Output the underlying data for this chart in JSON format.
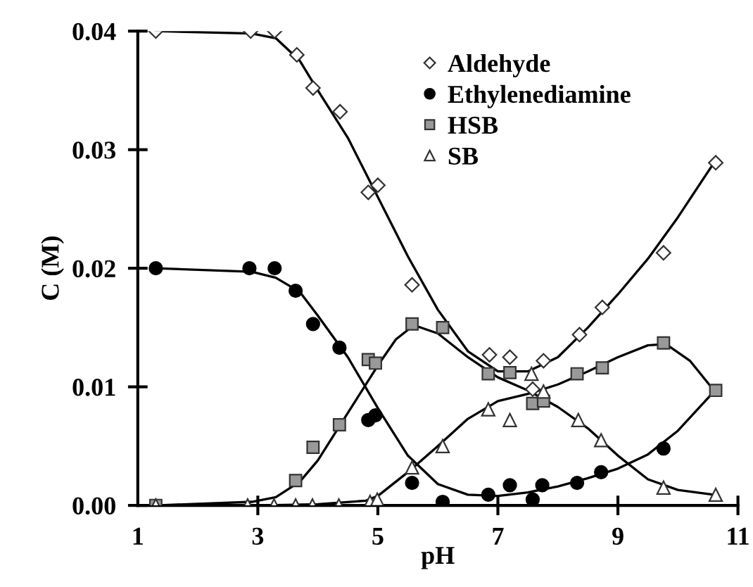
{
  "chart_data": {
    "type": "scatter",
    "xlabel": "pH",
    "ylabel": "C (M)",
    "xlim": [
      1,
      11
    ],
    "ylim": [
      0,
      0.04
    ],
    "xticks": [
      1,
      3,
      5,
      7,
      9,
      11
    ],
    "yticks": [
      {
        "value": 0,
        "label": "0.00"
      },
      {
        "value": 0.01,
        "label": "0.01"
      },
      {
        "value": 0.02,
        "label": "0.02"
      },
      {
        "value": 0.03,
        "label": "0.03"
      },
      {
        "value": 0.04,
        "label": "0.04"
      }
    ],
    "grid": false,
    "legend": "top right",
    "series": [
      {
        "name": "Aldehyde",
        "marker": "diamond",
        "color": "#ffffff",
        "x": [
          1.3,
          2.88,
          3.28,
          3.65,
          3.92,
          4.37,
          4.84,
          5.0,
          5.57,
          6.86,
          7.2,
          7.58,
          7.76,
          8.36,
          8.74,
          9.76,
          10.63
        ],
        "values": [
          0.04,
          0.04,
          0.04,
          0.038,
          0.0352,
          0.0332,
          0.0264,
          0.027,
          0.0186,
          0.0127,
          0.0125,
          0.0098,
          0.0122,
          0.0144,
          0.0167,
          0.0213,
          0.0289
        ]
      },
      {
        "name": "Ethylenediamine",
        "marker": "circle",
        "color": "#000000",
        "x": [
          1.3,
          2.86,
          3.28,
          3.63,
          3.92,
          4.36,
          4.84,
          4.96,
          5.57,
          6.08,
          6.84,
          7.2,
          7.58,
          7.74,
          8.32,
          8.72,
          9.76
        ],
        "values": [
          0.02,
          0.02,
          0.02,
          0.0181,
          0.0153,
          0.0133,
          0.0072,
          0.0076,
          0.0019,
          0.0003,
          0.0009,
          0.0017,
          0.0005,
          0.0017,
          0.0019,
          0.0028,
          0.0048
        ]
      },
      {
        "name": "HSB",
        "marker": "square",
        "color": "#999999",
        "x": [
          1.3,
          3.63,
          3.92,
          4.36,
          4.84,
          4.96,
          5.57,
          6.08,
          6.84,
          7.2,
          7.58,
          7.76,
          8.32,
          8.74,
          9.76,
          10.63
        ],
        "values": [
          0.0,
          0.0021,
          0.0049,
          0.0068,
          0.0123,
          0.012,
          0.0153,
          0.015,
          0.0111,
          0.0112,
          0.0086,
          0.0088,
          0.0111,
          0.0116,
          0.0137,
          0.0097
        ]
      },
      {
        "name": "SB",
        "marker": "triangle",
        "color": "#ffffff",
        "x": [
          1.3,
          2.83,
          3.27,
          3.63,
          3.91,
          4.35,
          4.87,
          4.99,
          5.57,
          6.08,
          6.84,
          7.2,
          7.56,
          7.76,
          8.34,
          8.72,
          9.76,
          10.63
        ],
        "values": [
          0.0,
          0.0,
          0.0,
          0.0,
          0.0,
          0.0,
          0.0003,
          0.0005,
          0.0032,
          0.005,
          0.0081,
          0.0072,
          0.0111,
          0.0096,
          0.0072,
          0.0055,
          0.0015,
          0.0009
        ]
      },
      {
        "type": "line",
        "marker": "none",
        "line_style": "solid",
        "color": "#000000",
        "x": [
          1.3,
          2.9,
          3.3,
          3.7,
          4.0,
          4.5,
          5.0,
          5.5,
          6.0,
          6.5,
          7.0,
          7.5,
          8.0,
          8.5,
          9.0,
          9.5,
          10.0,
          10.6
        ],
        "values": [
          0.04,
          0.0398,
          0.0394,
          0.0375,
          0.035,
          0.031,
          0.026,
          0.021,
          0.0165,
          0.013,
          0.0113,
          0.0113,
          0.0125,
          0.015,
          0.0178,
          0.0208,
          0.0243,
          0.0289
        ]
      },
      {
        "type": "line",
        "marker": "none",
        "line_style": "solid",
        "color": "#000000",
        "x": [
          1.3,
          2.9,
          3.3,
          3.7,
          4.0,
          4.5,
          5.0,
          5.5,
          6.0,
          6.5,
          7.0,
          7.5,
          8.0,
          8.5,
          9.0,
          9.5,
          10.0,
          10.6
        ],
        "values": [
          0.02,
          0.0197,
          0.0192,
          0.018,
          0.016,
          0.0125,
          0.0082,
          0.0042,
          0.0018,
          0.0009,
          0.0008,
          0.0011,
          0.0016,
          0.0023,
          0.0031,
          0.0043,
          0.0063,
          0.0096
        ]
      },
      {
        "type": "line",
        "marker": "none",
        "line_style": "solid",
        "color": "#000000",
        "x": [
          1.3,
          2.9,
          3.3,
          3.7,
          4.0,
          4.5,
          5.0,
          5.3,
          5.6,
          6.0,
          6.5,
          7.0,
          7.5,
          8.0,
          8.5,
          9.0,
          9.5,
          10.0,
          10.6
        ],
        "values": [
          0.0,
          0.0003,
          0.0007,
          0.002,
          0.0038,
          0.0078,
          0.0118,
          0.014,
          0.0152,
          0.0145,
          0.0125,
          0.0108,
          0.0097,
          0.0083,
          0.0065,
          0.0042,
          0.0022,
          0.0013,
          0.0009
        ]
      },
      {
        "type": "line",
        "marker": "none",
        "line_style": "solid",
        "color": "#000000",
        "x": [
          1.3,
          3.0,
          4.0,
          4.8,
          5.0,
          5.5,
          6.0,
          6.5,
          7.0,
          7.5,
          8.0,
          8.5,
          9.0,
          9.5,
          9.8,
          10.2,
          10.6
        ],
        "values": [
          0.0,
          0.0,
          0.0001,
          0.0004,
          0.0008,
          0.0028,
          0.005,
          0.0073,
          0.0088,
          0.0094,
          0.0102,
          0.0113,
          0.0125,
          0.0135,
          0.0136,
          0.0122,
          0.0097
        ]
      }
    ]
  }
}
